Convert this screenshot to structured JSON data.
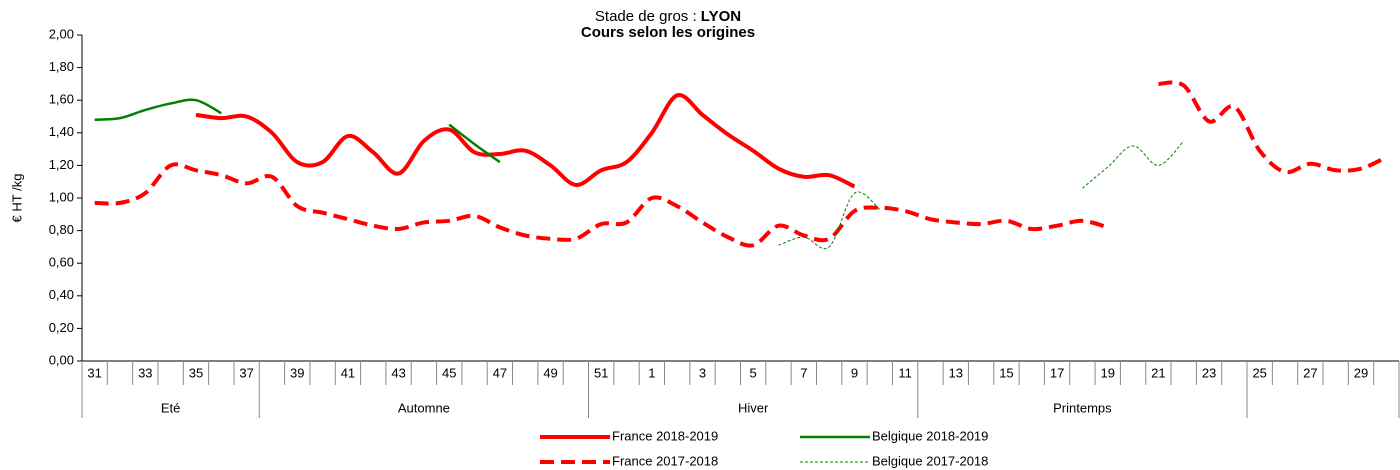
{
  "chart_data": {
    "type": "line",
    "title": "Stade de gros : ",
    "title_emphasis": "LYON",
    "subtitle": "Cours selon les origines",
    "y_label": "€ HT /kg",
    "categories": [
      "31",
      null,
      "33",
      null,
      "35",
      null,
      "37",
      null,
      "39",
      null,
      "41",
      null,
      "43",
      null,
      "45",
      null,
      "47",
      null,
      "49",
      null,
      "51",
      null,
      "1",
      null,
      "3",
      null,
      "5",
      null,
      "7",
      null,
      "9",
      null,
      "11",
      null,
      "13",
      null,
      "15",
      null,
      "17",
      null,
      "19",
      null,
      "21",
      null,
      "23",
      null,
      "25",
      null,
      "27",
      null,
      "29",
      null
    ],
    "seasons": [
      {
        "label": "Eté",
        "span": 7
      },
      {
        "label": "Automne",
        "span": 13
      },
      {
        "label": "Hiver",
        "span": 13
      },
      {
        "label": "Printemps",
        "span": 13
      },
      {
        "label": null,
        "span": 6
      }
    ],
    "ylim": [
      0,
      2
    ],
    "yticks": [
      {
        "value": 0,
        "label": "0,00"
      },
      {
        "value": 0.2,
        "label": "0,20"
      },
      {
        "value": 0.4,
        "label": "0,40"
      },
      {
        "value": 0.6,
        "label": "0,60"
      },
      {
        "value": 0.8,
        "label": "0,80"
      },
      {
        "value": 1,
        "label": "1,00"
      },
      {
        "value": 1.2,
        "label": "1,20"
      },
      {
        "value": 1.4,
        "label": "1,40"
      },
      {
        "value": 1.6,
        "label": "1,60"
      },
      {
        "value": 1.8,
        "label": "1,80"
      },
      {
        "value": 2,
        "label": "2,00"
      }
    ],
    "legend": "bottom",
    "series": [
      {
        "name": "France 2018-2019",
        "color": "#ff0000",
        "width": 4,
        "dash": "solid",
        "values": [
          null,
          null,
          null,
          null,
          1.51,
          1.49,
          1.5,
          1.4,
          1.22,
          1.22,
          1.38,
          1.28,
          1.15,
          1.35,
          1.42,
          1.28,
          1.27,
          1.29,
          1.2,
          1.08,
          1.17,
          1.22,
          1.4,
          1.63,
          1.51,
          1.39,
          1.29,
          1.18,
          1.13,
          1.14,
          1.07,
          null,
          null,
          null,
          null,
          null,
          null,
          null,
          null,
          null,
          null,
          null,
          null,
          null,
          null,
          null,
          null,
          null,
          null,
          null,
          null,
          null
        ]
      },
      {
        "name": "Belgique 2018-2019",
        "color": "#008000",
        "width": 2.5,
        "dash": "solid",
        "values": [
          1.48,
          1.49,
          1.54,
          1.58,
          1.6,
          1.52,
          null,
          null,
          null,
          null,
          null,
          null,
          null,
          null,
          1.45,
          1.33,
          1.22,
          null,
          null,
          null,
          null,
          null,
          null,
          null,
          null,
          null,
          null,
          null,
          null,
          null,
          null,
          null,
          null,
          null,
          null,
          null,
          null,
          null,
          null,
          null,
          null,
          null,
          null,
          null,
          null,
          null,
          null,
          null,
          null,
          null,
          null,
          null
        ]
      },
      {
        "name": "France 2017-2018",
        "color": "#ff0000",
        "width": 4,
        "dash": "dashed",
        "values": [
          0.97,
          0.97,
          1.03,
          1.2,
          1.17,
          1.14,
          1.09,
          1.13,
          0.95,
          0.91,
          0.87,
          0.83,
          0.81,
          0.85,
          0.86,
          0.89,
          0.82,
          0.77,
          0.75,
          0.75,
          0.84,
          0.85,
          1.0,
          0.95,
          0.85,
          0.76,
          0.71,
          0.83,
          0.77,
          0.75,
          0.92,
          0.94,
          0.92,
          0.87,
          0.85,
          0.84,
          0.86,
          0.81,
          0.83,
          0.86,
          0.82,
          null,
          1.7,
          1.69,
          1.47,
          1.56,
          1.29,
          1.16,
          1.21,
          1.17,
          1.18,
          1.25
        ]
      },
      {
        "name": "Belgique 2017-2018",
        "color": "#008000",
        "width": 1,
        "dash": "dotted",
        "values": [
          null,
          null,
          null,
          null,
          null,
          null,
          null,
          null,
          null,
          null,
          null,
          null,
          null,
          null,
          null,
          null,
          null,
          null,
          null,
          null,
          null,
          null,
          null,
          null,
          null,
          null,
          null,
          0.71,
          0.76,
          0.7,
          1.03,
          0.93,
          null,
          null,
          null,
          null,
          null,
          null,
          null,
          1.06,
          1.19,
          1.32,
          1.2,
          1.35,
          null,
          null,
          null,
          null,
          null,
          null,
          null,
          null
        ]
      }
    ]
  }
}
